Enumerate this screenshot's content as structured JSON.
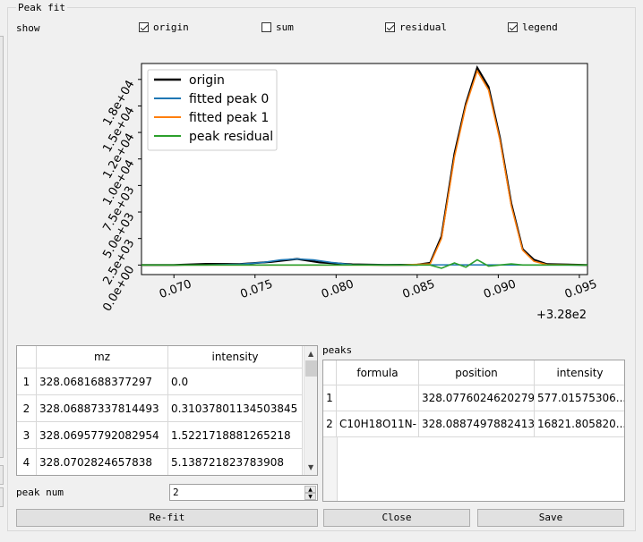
{
  "group_title": "Peak fit",
  "show": {
    "label": "show",
    "origin": {
      "label": "origin",
      "checked": true
    },
    "sum": {
      "label": "sum",
      "checked": false
    },
    "residual": {
      "label": "residual",
      "checked": true
    },
    "legend": {
      "label": "legend",
      "checked": true
    }
  },
  "chart_data": {
    "type": "line",
    "x_offset_label": "+3.28e2",
    "x_ticks": [
      "0.070",
      "0.075",
      "0.080",
      "0.085",
      "0.090",
      "0.095"
    ],
    "y_ticks": [
      "0.0e+00",
      "2.5e+03",
      "5.0e+03",
      "7.5e+03",
      "1.0e+04",
      "1.2e+04",
      "1.5e+04",
      "1.8e+04"
    ],
    "xlim": [
      328.068,
      328.0955
    ],
    "ylim": [
      -900,
      19000
    ],
    "legend_position": "top-left",
    "series": [
      {
        "name": "origin",
        "color": "#000000",
        "x": [
          328.068,
          328.07,
          328.072,
          328.074,
          328.076,
          328.0776,
          328.079,
          328.081,
          328.083,
          328.085,
          328.0858,
          328.0865,
          328.0873,
          328.088,
          328.0887,
          328.0894,
          328.0901,
          328.0908,
          328.0915,
          328.0922,
          328.093,
          328.0955
        ],
        "y": [
          0,
          0,
          100,
          90,
          300,
          577,
          250,
          60,
          10,
          30,
          200,
          2700,
          10500,
          15200,
          18600,
          16800,
          12000,
          5800,
          1500,
          500,
          80,
          0
        ]
      },
      {
        "name": "fitted peak 0",
        "color": "#1f77b4",
        "x": [
          328.068,
          328.072,
          328.074,
          328.0755,
          328.0766,
          328.0776,
          328.0786,
          328.0797,
          328.081,
          328.0955
        ],
        "y": [
          0,
          5,
          60,
          250,
          480,
          577,
          480,
          250,
          30,
          0
        ]
      },
      {
        "name": "fitted peak 1",
        "color": "#ff7f0e",
        "x": [
          328.068,
          328.084,
          328.0858,
          328.0865,
          328.0873,
          328.088,
          328.0887,
          328.0894,
          328.0901,
          328.0908,
          328.0915,
          328.0922,
          328.093,
          328.0955
        ],
        "y": [
          0,
          0,
          100,
          2500,
          10200,
          15000,
          18300,
          16500,
          11800,
          5600,
          1400,
          350,
          40,
          0
        ]
      },
      {
        "name": "peak residual",
        "color": "#2ca02c",
        "x": [
          328.068,
          328.084,
          328.0858,
          328.0865,
          328.0873,
          328.088,
          328.0887,
          328.0894,
          328.0901,
          328.0908,
          328.0915,
          328.0955
        ],
        "y": [
          0,
          0,
          0,
          -300,
          200,
          -200,
          500,
          -100,
          0,
          100,
          0,
          0
        ]
      }
    ]
  },
  "left_table": {
    "headers": [
      "mz",
      "intensity"
    ],
    "rows": [
      {
        "num": "1",
        "mz": "328.0681688377297",
        "intensity": "0.0"
      },
      {
        "num": "2",
        "mz": "328.06887337814493",
        "intensity": "0.31037801134503845"
      },
      {
        "num": "3",
        "mz": "328.06957792082954",
        "intensity": "1.5221718881265218"
      },
      {
        "num": "4",
        "mz": "328.0702824657838",
        "intensity": "5.138721823783908"
      }
    ]
  },
  "peaks_label": "peaks",
  "peaks_table": {
    "headers": [
      "formula",
      "position",
      "intensity"
    ],
    "rows": [
      {
        "num": "1",
        "formula": "",
        "position": "328.0776024620279",
        "intensity": "577.01575306..."
      },
      {
        "num": "2",
        "formula": "C10H18O11N-",
        "position": "328.08874978824133",
        "intensity": "16821.805820..."
      }
    ]
  },
  "peak_num": {
    "label": "peak num",
    "value": "2"
  },
  "buttons": {
    "refit": "Re-fit",
    "close": "Close",
    "save": "Save"
  }
}
